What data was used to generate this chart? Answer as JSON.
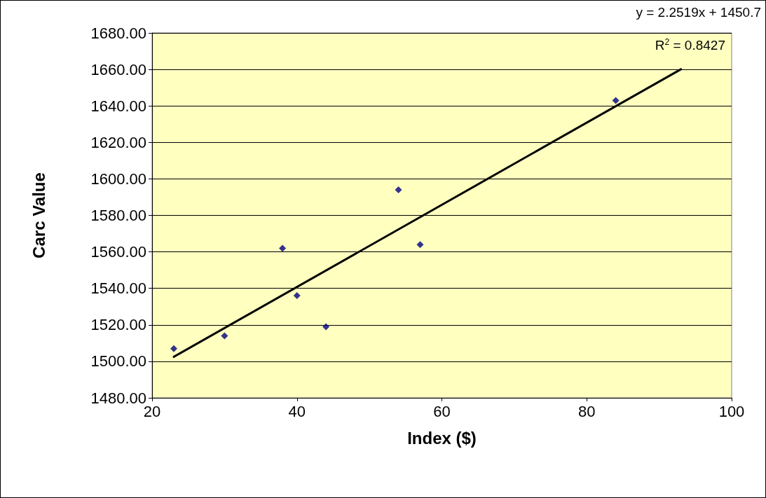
{
  "chart_data": {
    "type": "scatter",
    "xlabel": "Index ($)",
    "ylabel": "Carc Value",
    "annotations": [
      "y = 2.2519x + 1450.7",
      "R$^{2}$ = 0.8427"
    ],
    "series": [
      {
        "color": "#000080",
        "marker": "diamond",
        "x": [
          23,
          30,
          38,
          40,
          44,
          54,
          57,
          84
        ],
        "values": [
          1507,
          1514,
          1562,
          1536,
          1519,
          1594,
          1564,
          1643
        ]
      },
      {
        "type": "line",
        "color": "#000000",
        "marker": "none",
        "line_style": "solid",
        "x": [
          23,
          93
        ],
        "values": [
          1502.5,
          1660.1
        ]
      }
    ],
    "xlim": [
      20,
      100
    ],
    "xticks": [
      20,
      40,
      60,
      80,
      100
    ],
    "ylim": [
      1480,
      1680
    ],
    "yticks": [
      {
        "value": 1480,
        "label": "1480.00"
      },
      {
        "value": 1500,
        "label": "1500.00"
      },
      {
        "value": 1520,
        "label": "1520.00"
      },
      {
        "value": 1540,
        "label": "1540.00"
      },
      {
        "value": 1560,
        "label": "1560.00"
      },
      {
        "value": 1580,
        "label": "1580.00"
      },
      {
        "value": 1600,
        "label": "1600.00"
      },
      {
        "value": 1620,
        "label": "1620.00"
      },
      {
        "value": 1640,
        "label": "1640.00"
      },
      {
        "value": 1660,
        "label": "1660.00"
      },
      {
        "value": 1680,
        "label": "1680.00"
      }
    ],
    "grid": "y"
  }
}
